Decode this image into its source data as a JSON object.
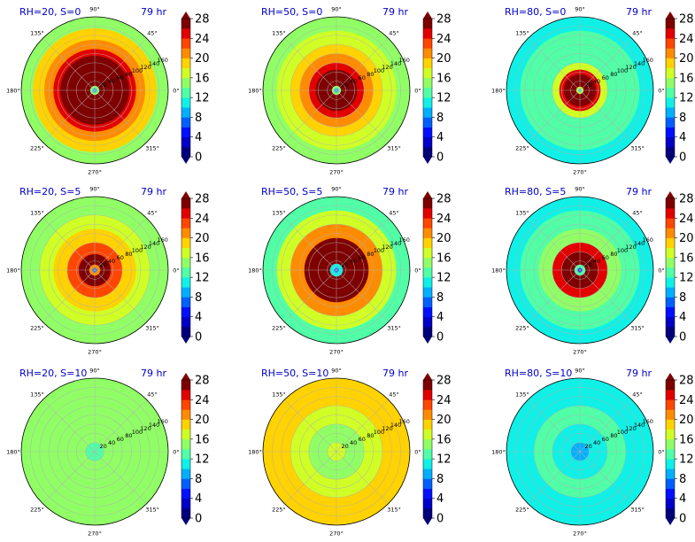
{
  "chart_data": [
    {
      "type": "heatmap",
      "projection": "polar",
      "title_left": "RH=20, S=0",
      "title_right": "79 hr",
      "angle_ticks": [
        "0°",
        "45°",
        "90°",
        "135°",
        "180°",
        "225°",
        "270°",
        "315°"
      ],
      "radial_ticks": [
        "20",
        "40",
        "60",
        "80",
        "100",
        "120",
        "140",
        "160"
      ],
      "rlim": [
        0,
        160
      ],
      "colorbar_ticks": [
        "0",
        "4",
        "8",
        "12",
        "16",
        "20",
        "24",
        "28"
      ],
      "colorbar_range": [
        0,
        28
      ],
      "rings": [
        {
          "r": 5,
          "v": 8
        },
        {
          "r": 10,
          "v": 15
        },
        {
          "r": 60,
          "v": 28
        },
        {
          "r": 75,
          "v": 27
        },
        {
          "r": 90,
          "v": 24
        },
        {
          "r": 110,
          "v": 21
        },
        {
          "r": 135,
          "v": 18
        },
        {
          "r": 160,
          "v": 15
        }
      ]
    },
    {
      "type": "heatmap",
      "projection": "polar",
      "title_left": "RH=50, S=0",
      "title_right": "79 hr",
      "angle_ticks": [
        "0°",
        "45°",
        "90°",
        "135°",
        "180°",
        "225°",
        "270°",
        "315°"
      ],
      "radial_ticks": [
        "20",
        "40",
        "60",
        "80",
        "100",
        "120",
        "140",
        "160"
      ],
      "rlim": [
        0,
        160
      ],
      "colorbar_ticks": [
        "0",
        "4",
        "8",
        "12",
        "16",
        "20",
        "24",
        "28"
      ],
      "colorbar_range": [
        0,
        28
      ],
      "rings": [
        {
          "r": 5,
          "v": 8
        },
        {
          "r": 10,
          "v": 14
        },
        {
          "r": 45,
          "v": 28
        },
        {
          "r": 60,
          "v": 25
        },
        {
          "r": 80,
          "v": 21
        },
        {
          "r": 100,
          "v": 19
        },
        {
          "r": 130,
          "v": 16
        },
        {
          "r": 160,
          "v": 14
        }
      ]
    },
    {
      "type": "heatmap",
      "projection": "polar",
      "title_left": "RH=80, S=0",
      "title_right": "79 hr",
      "angle_ticks": [
        "0°",
        "45°",
        "90°",
        "135°",
        "180°",
        "225°",
        "270°",
        "315°"
      ],
      "radial_ticks": [
        "20",
        "40",
        "60",
        "80",
        "100",
        "120",
        "140",
        "160"
      ],
      "rlim": [
        0,
        160
      ],
      "colorbar_ticks": [
        "0",
        "4",
        "8",
        "12",
        "16",
        "20",
        "24",
        "28"
      ],
      "colorbar_range": [
        0,
        28
      ],
      "rings": [
        {
          "r": 4,
          "v": 10
        },
        {
          "r": 8,
          "v": 16
        },
        {
          "r": 35,
          "v": 28
        },
        {
          "r": 45,
          "v": 24
        },
        {
          "r": 60,
          "v": 16
        },
        {
          "r": 90,
          "v": 13
        },
        {
          "r": 130,
          "v": 12
        },
        {
          "r": 160,
          "v": 11
        }
      ]
    },
    {
      "type": "heatmap",
      "projection": "polar",
      "title_left": "RH=20, S=5",
      "title_right": "79 hr",
      "angle_ticks": [
        "0°",
        "45°",
        "90°",
        "135°",
        "180°",
        "225°",
        "270°",
        "315°"
      ],
      "radial_ticks": [
        "20",
        "40",
        "60",
        "80",
        "100",
        "120",
        "140",
        "160"
      ],
      "rlim": [
        0,
        160
      ],
      "colorbar_ticks": [
        "0",
        "4",
        "8",
        "12",
        "16",
        "20",
        "24",
        "28"
      ],
      "colorbar_range": [
        0,
        28
      ],
      "rings": [
        {
          "r": 5,
          "v": 6
        },
        {
          "r": 12,
          "v": 20
        },
        {
          "r": 35,
          "v": 26
        },
        {
          "r": 60,
          "v": 22
        },
        {
          "r": 90,
          "v": 19
        },
        {
          "r": 120,
          "v": 17
        },
        {
          "r": 160,
          "v": 15
        }
      ]
    },
    {
      "type": "heatmap",
      "projection": "polar",
      "title_left": "RH=50, S=5",
      "title_right": "79 hr",
      "angle_ticks": [
        "0°",
        "45°",
        "90°",
        "135°",
        "180°",
        "225°",
        "270°",
        "315°"
      ],
      "radial_ticks": [
        "20",
        "40",
        "60",
        "80",
        "100",
        "120",
        "140",
        "160"
      ],
      "rlim": [
        0,
        160
      ],
      "colorbar_ticks": [
        "0",
        "4",
        "8",
        "12",
        "16",
        "20",
        "24",
        "28"
      ],
      "colorbar_range": [
        0,
        28
      ],
      "rings": [
        {
          "r": 5,
          "v": 6
        },
        {
          "r": 14,
          "v": 11
        },
        {
          "r": 40,
          "v": 27
        },
        {
          "r": 70,
          "v": 26
        },
        {
          "r": 100,
          "v": 21
        },
        {
          "r": 130,
          "v": 16
        },
        {
          "r": 160,
          "v": 12
        }
      ]
    },
    {
      "type": "heatmap",
      "projection": "polar",
      "title_left": "RH=80, S=5",
      "title_right": "79 hr",
      "angle_ticks": [
        "0°",
        "45°",
        "90°",
        "135°",
        "180°",
        "225°",
        "270°",
        "315°"
      ],
      "radial_ticks": [
        "20",
        "40",
        "60",
        "80",
        "100",
        "120",
        "140",
        "160"
      ],
      "rlim": [
        0,
        160
      ],
      "colorbar_ticks": [
        "0",
        "4",
        "8",
        "12",
        "16",
        "20",
        "24",
        "28"
      ],
      "colorbar_range": [
        0,
        28
      ],
      "rings": [
        {
          "r": 5,
          "v": 5
        },
        {
          "r": 12,
          "v": 12
        },
        {
          "r": 40,
          "v": 28
        },
        {
          "r": 60,
          "v": 24
        },
        {
          "r": 90,
          "v": 15
        },
        {
          "r": 130,
          "v": 12
        },
        {
          "r": 160,
          "v": 10
        }
      ]
    },
    {
      "type": "heatmap",
      "projection": "polar",
      "title_left": "RH=20, S=10",
      "title_right": "79 hr",
      "angle_ticks": [
        "0°",
        "45°",
        "90°",
        "135°",
        "180°",
        "225°",
        "270°",
        "315°"
      ],
      "radial_ticks": [
        "20",
        "40",
        "60",
        "80",
        "100",
        "120",
        "140",
        "160"
      ],
      "rlim": [
        0,
        160
      ],
      "colorbar_ticks": [
        "0",
        "4",
        "8",
        "12",
        "16",
        "20",
        "24",
        "28"
      ],
      "colorbar_range": [
        0,
        28
      ],
      "rings": [
        {
          "r": 20,
          "v": 13
        },
        {
          "r": 60,
          "v": 14
        },
        {
          "r": 100,
          "v": 15
        },
        {
          "r": 160,
          "v": 14
        }
      ]
    },
    {
      "type": "heatmap",
      "projection": "polar",
      "title_left": "RH=50, S=10",
      "title_right": "79 hr",
      "angle_ticks": [
        "0°",
        "45°",
        "90°",
        "135°",
        "180°",
        "225°",
        "270°",
        "315°"
      ],
      "radial_ticks": [
        "20",
        "40",
        "60",
        "80",
        "100",
        "120",
        "140",
        "160"
      ],
      "rlim": [
        0,
        160
      ],
      "colorbar_ticks": [
        "0",
        "4",
        "8",
        "12",
        "16",
        "20",
        "24",
        "28"
      ],
      "colorbar_range": [
        0,
        28
      ],
      "rings": [
        {
          "r": 20,
          "v": 16
        },
        {
          "r": 60,
          "v": 15
        },
        {
          "r": 100,
          "v": 17
        },
        {
          "r": 160,
          "v": 18
        }
      ]
    },
    {
      "type": "heatmap",
      "projection": "polar",
      "title_left": "RH=80, S=10",
      "title_right": "79 hr",
      "angle_ticks": [
        "0°",
        "45°",
        "90°",
        "135°",
        "180°",
        "225°",
        "270°",
        "315°"
      ],
      "radial_ticks": [
        "20",
        "40",
        "60",
        "80",
        "100",
        "120",
        "140",
        "160"
      ],
      "rlim": [
        0,
        160
      ],
      "colorbar_ticks": [
        "0",
        "4",
        "8",
        "12",
        "16",
        "20",
        "24",
        "28"
      ],
      "colorbar_range": [
        0,
        28
      ],
      "rings": [
        {
          "r": 20,
          "v": 8
        },
        {
          "r": 60,
          "v": 10
        },
        {
          "r": 100,
          "v": 13
        },
        {
          "r": 160,
          "v": 10
        }
      ]
    }
  ],
  "colormap": [
    "#00007f",
    "#0000c8",
    "#0010ff",
    "#0060ff",
    "#00b0ff",
    "#10f0e6",
    "#50ffa6",
    "#90ff66",
    "#d0ff26",
    "#ffd200",
    "#ff8c00",
    "#ff4600",
    "#e20000",
    "#7f0000"
  ]
}
